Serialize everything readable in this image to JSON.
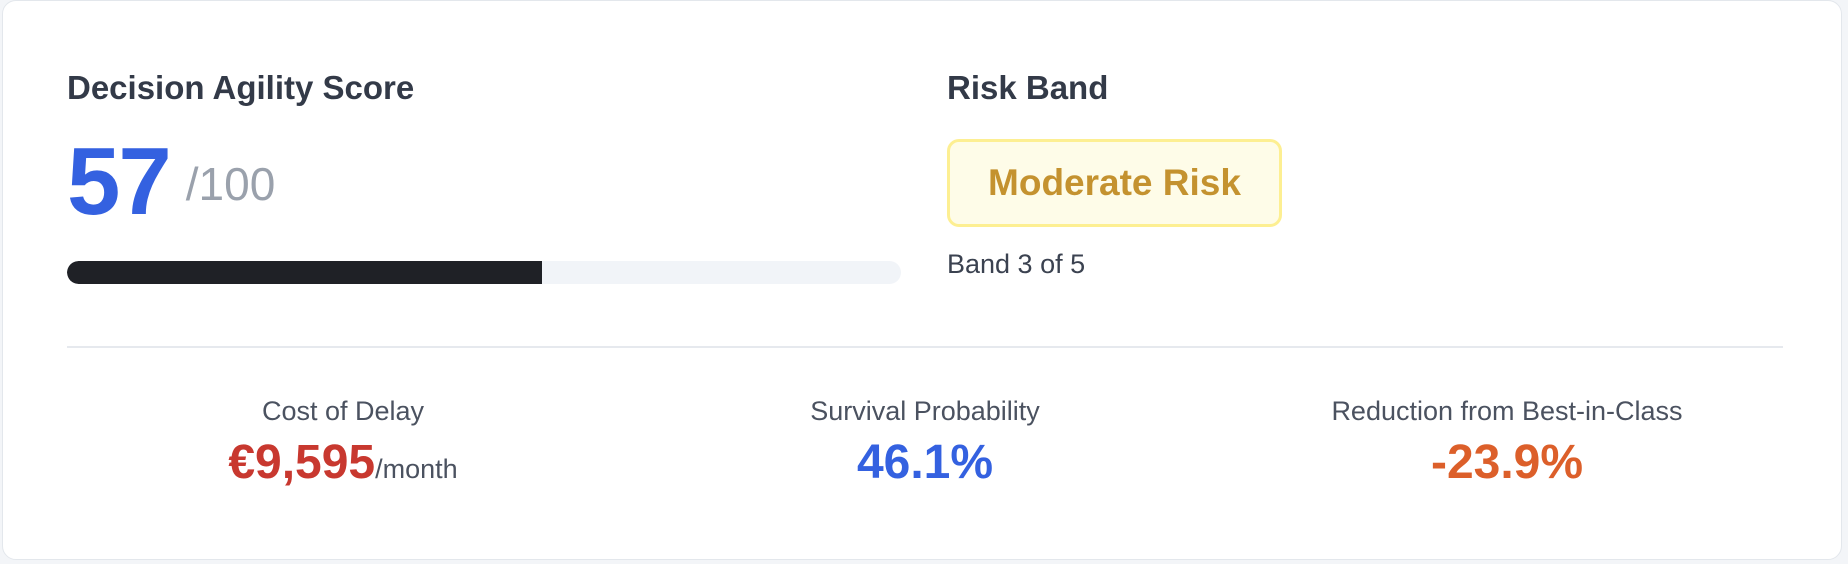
{
  "score_card": {
    "title": "Decision Agility Score",
    "score": {
      "value": 57
    },
    "scale_max": {
      "value": 100,
      "label": "/100"
    },
    "risk": {
      "title": "Risk Band",
      "badge": "Moderate Risk",
      "band_text": "Band 3 of 5"
    },
    "metrics": [
      {
        "label": "Cost of Delay",
        "value": "€9,595",
        "unit": "/month",
        "color": "#c8382f"
      },
      {
        "label": "Survival Probability",
        "value": "46.1%",
        "color": "#3461e0"
      },
      {
        "label": "Reduction from Best-in-Class",
        "value": "-23.9%",
        "color": "#dc5f2a"
      }
    ]
  }
}
